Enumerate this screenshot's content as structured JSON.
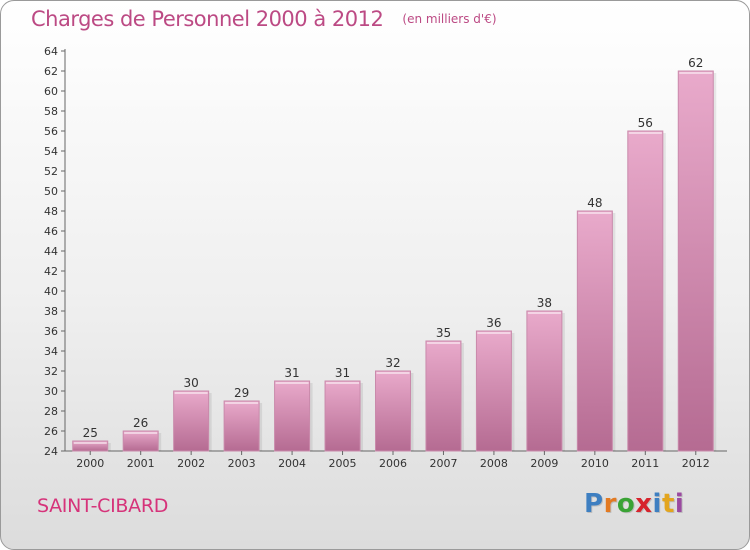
{
  "title": "Charges de Personnel 2000 à 2012",
  "subtitle": "(en milliers d'€)",
  "commune": "SAINT-CIBARD",
  "logo": {
    "text": "Proxiti",
    "letters": [
      {
        "ch": "P",
        "color": "#3e7fc1"
      },
      {
        "ch": "r",
        "color": "#e37a22"
      },
      {
        "ch": "o",
        "color": "#3aa335"
      },
      {
        "ch": "x",
        "color": "#d7242d"
      },
      {
        "ch": "i",
        "color": "#3e7fc1"
      },
      {
        "ch": "t",
        "color": "#e3a51e"
      },
      {
        "ch": "i",
        "color": "#9b4aa0"
      }
    ]
  },
  "colors": {
    "bar_top": "#e9aacb",
    "bar_bottom": "#b56b92",
    "bar_side": "#c98aab",
    "title": "#bc4a84",
    "commune": "#d6337a",
    "axis": "#666666"
  },
  "chart_data": {
    "type": "bar",
    "categories": [
      "2000",
      "2001",
      "2002",
      "2003",
      "2004",
      "2005",
      "2006",
      "2007",
      "2008",
      "2009",
      "2010",
      "2011",
      "2012"
    ],
    "values": [
      25,
      26,
      30,
      29,
      31,
      31,
      32,
      35,
      36,
      38,
      48,
      56,
      62
    ],
    "title": "Charges de Personnel 2000 à 2012",
    "subtitle": "(en milliers d'€)",
    "xlabel": "",
    "ylabel": "",
    "ylim": [
      24,
      64
    ],
    "yticks": [
      24,
      26,
      28,
      30,
      32,
      34,
      36,
      38,
      40,
      42,
      44,
      46,
      48,
      50,
      52,
      54,
      56,
      58,
      60,
      62,
      64
    ],
    "grid": false,
    "legend": "none",
    "data_labels": true
  }
}
